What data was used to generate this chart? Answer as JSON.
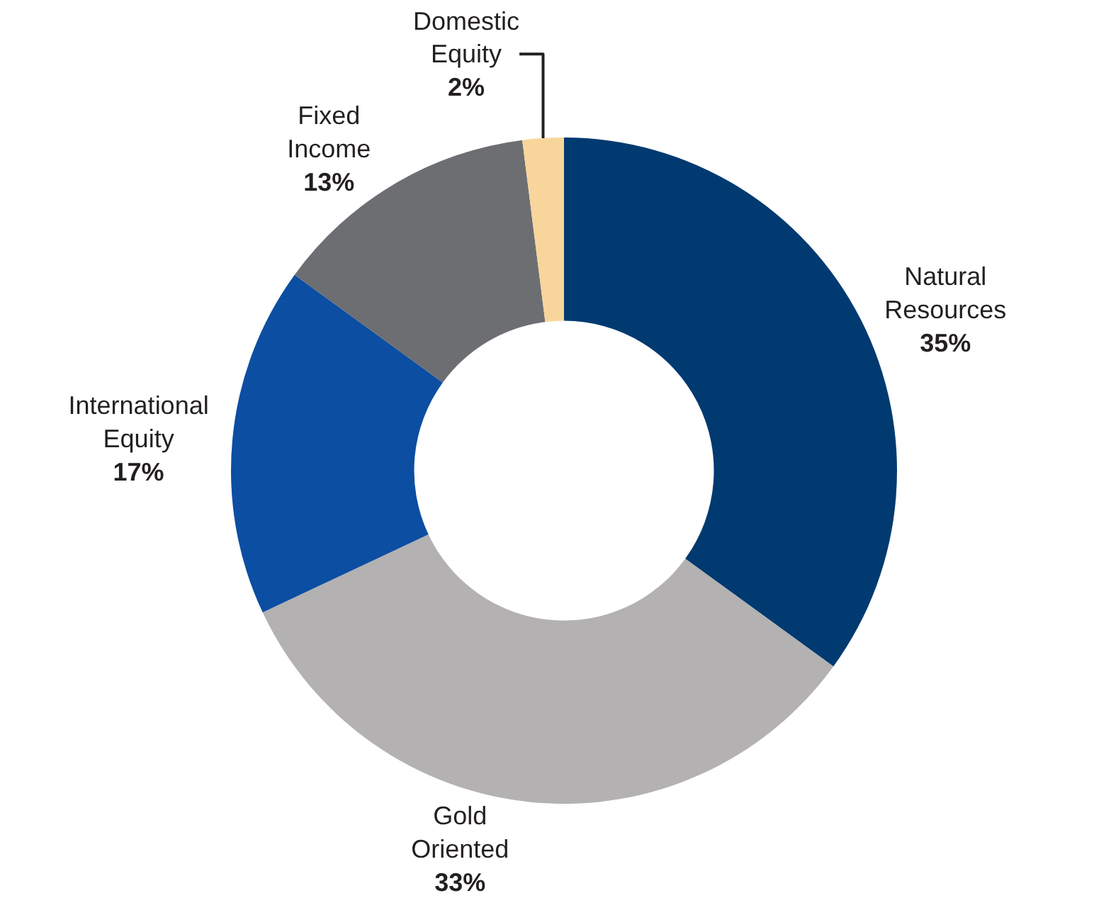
{
  "chart_data": {
    "type": "donut",
    "categories": [
      "Natural Resources",
      "Gold Oriented",
      "International Equity",
      "Fixed Income",
      "Domestic Equity"
    ],
    "values": [
      35,
      33,
      17,
      13,
      2
    ],
    "value_labels": [
      "35%",
      "33%",
      "17%",
      "13%",
      "2%"
    ],
    "colors": [
      "#003a70",
      "#b3b1b1",
      "#0b4ea2",
      "#6d6e71",
      "#f7d59b"
    ],
    "legend": false
  }
}
